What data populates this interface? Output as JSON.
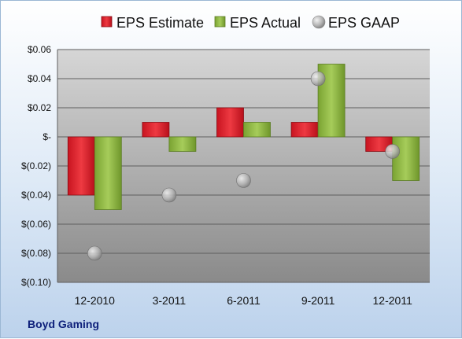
{
  "chart_data": {
    "type": "bar",
    "categories": [
      "12-2010",
      "3-2011",
      "6-2011",
      "9-2011",
      "12-2011"
    ],
    "series": [
      {
        "name": "EPS Estimate",
        "kind": "bar",
        "color": "#e0242f",
        "values": [
          -0.04,
          0.01,
          0.02,
          0.01,
          -0.01
        ]
      },
      {
        "name": "EPS Actual",
        "kind": "bar",
        "color": "#8fb842",
        "values": [
          -0.05,
          -0.01,
          0.01,
          0.05,
          -0.03
        ]
      },
      {
        "name": "EPS GAAP",
        "kind": "marker",
        "color": "#a8a8a8",
        "values": [
          -0.08,
          -0.04,
          -0.03,
          0.04,
          -0.01
        ]
      }
    ],
    "ylim": [
      -0.1,
      0.06
    ],
    "yticks": [
      0.06,
      0.04,
      0.02,
      0,
      -0.02,
      -0.04,
      -0.06,
      -0.08,
      -0.1
    ],
    "ytick_labels": [
      "$0.06",
      "$0.04",
      "$0.02",
      "$-",
      "$(0.02)",
      "$(0.04)",
      "$(0.06)",
      "$(0.08)",
      "$(0.10)"
    ],
    "grid": true,
    "legend_position": "top"
  },
  "footer": {
    "company": "Boyd Gaming"
  }
}
